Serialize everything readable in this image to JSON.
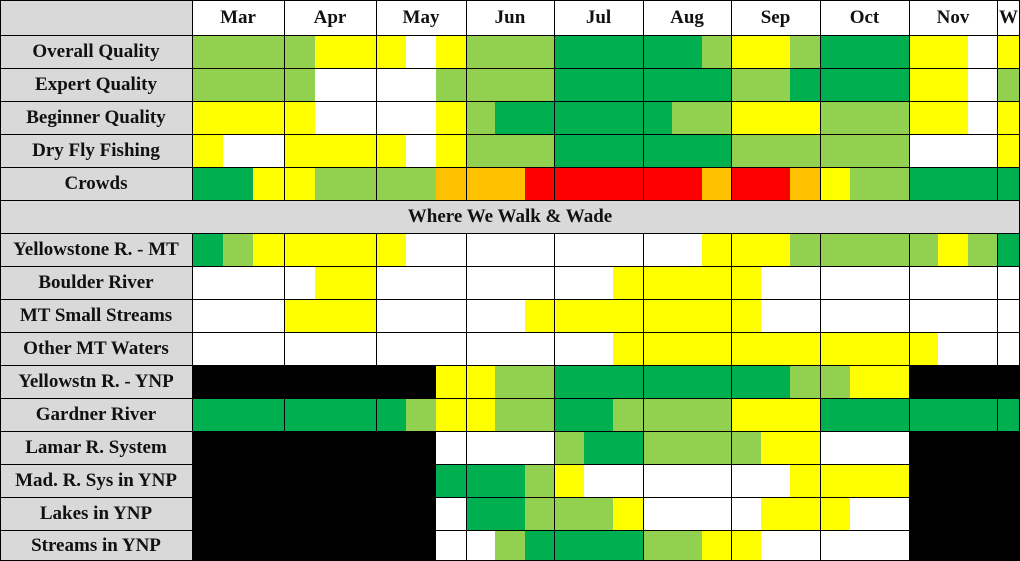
{
  "chart_data": {
    "type": "heatmap",
    "months": [
      "Mar",
      "Apr",
      "May",
      "Jun",
      "Jul",
      "Aug",
      "Sep",
      "Oct",
      "Nov",
      "W"
    ],
    "section_header": "Where We Walk & Wade",
    "colors": {
      "G": "#00B050",
      "L": "#92D050",
      "Y": "#FFFF00",
      "W": "#FFFFFF",
      "O": "#FFC000",
      "R": "#FF0000",
      "K": "#000000"
    },
    "rows_top": [
      {
        "label": "Overall Quality",
        "cells": [
          "LLL",
          "LYY",
          "YWY",
          "LLL",
          "GGG",
          "GGL",
          "YYL",
          "GGG",
          "YYW",
          "Y"
        ]
      },
      {
        "label": "Expert Quality",
        "cells": [
          "LLL",
          "LWW",
          "WWL",
          "LLL",
          "GGG",
          "GGG",
          "LLG",
          "GGG",
          "YYW",
          "L"
        ]
      },
      {
        "label": "Beginner Quality",
        "cells": [
          "YYY",
          "YWW",
          "WWY",
          "LGG",
          "GGG",
          "GLL",
          "YYY",
          "LLL",
          "YYW",
          "Y"
        ]
      },
      {
        "label": "Dry Fly Fishing",
        "cells": [
          "YWW",
          "YYY",
          "YWY",
          "LLL",
          "GGG",
          "GGG",
          "LLL",
          "LLL",
          "WWW",
          "Y"
        ]
      },
      {
        "label": "Crowds",
        "cells": [
          "GGY",
          "YLL",
          "LLO",
          "OOR",
          "RRR",
          "RRO",
          "RRO",
          "YLL",
          "GGG",
          "G"
        ]
      }
    ],
    "rows_bottom": [
      {
        "label": "Yellowstone R. - MT",
        "cells": [
          "GLY",
          "YYY",
          "YWW",
          "WWW",
          "WWW",
          "WWY",
          "YYL",
          "LLL",
          "LYL",
          "G"
        ]
      },
      {
        "label": "Boulder River",
        "cells": [
          "WWW",
          "WYY",
          "WWW",
          "WWW",
          "WWY",
          "YYY",
          "YWW",
          "WWW",
          "WWW",
          "W"
        ]
      },
      {
        "label": "MT Small Streams",
        "cells": [
          "WWW",
          "YYY",
          "WWW",
          "WWY",
          "YYY",
          "YYY",
          "YWW",
          "WWW",
          "WWW",
          "W"
        ]
      },
      {
        "label": "Other MT Waters",
        "cells": [
          "WWW",
          "WWW",
          "WWW",
          "WWW",
          "WWY",
          "YYY",
          "YYY",
          "YYY",
          "YWW",
          "W"
        ]
      },
      {
        "label": "Yellowstn R. - YNP",
        "cells": [
          "KKK",
          "KKK",
          "KKY",
          "YLL",
          "GGG",
          "GGG",
          "GGL",
          "LYY",
          "KKK",
          "K"
        ]
      },
      {
        "label": "Gardner River",
        "cells": [
          "GGG",
          "GGG",
          "GLY",
          "YLL",
          "GGL",
          "LLL",
          "YYY",
          "GGG",
          "GGG",
          "G"
        ]
      },
      {
        "label": "Lamar R. System",
        "cells": [
          "KKK",
          "KKK",
          "KKW",
          "WWW",
          "LGG",
          "LLL",
          "LYY",
          "WWW",
          "KKK",
          "K"
        ]
      },
      {
        "label": "Mad. R. Sys in YNP",
        "cells": [
          "KKK",
          "KKK",
          "KKG",
          "GGL",
          "YWW",
          "WWW",
          "WWY",
          "YYY",
          "KKK",
          "K"
        ]
      },
      {
        "label": "Lakes in YNP",
        "cells": [
          "KKK",
          "KKK",
          "KKW",
          "GGL",
          "LLY",
          "WWW",
          "WYY",
          "YWW",
          "KKK",
          "K"
        ]
      },
      {
        "label": "Streams in YNP",
        "cells": [
          "KKK",
          "KKK",
          "KKW",
          "WLG",
          "GGG",
          "LLY",
          "YWW",
          "WWW",
          "KKK",
          "K"
        ]
      }
    ]
  }
}
